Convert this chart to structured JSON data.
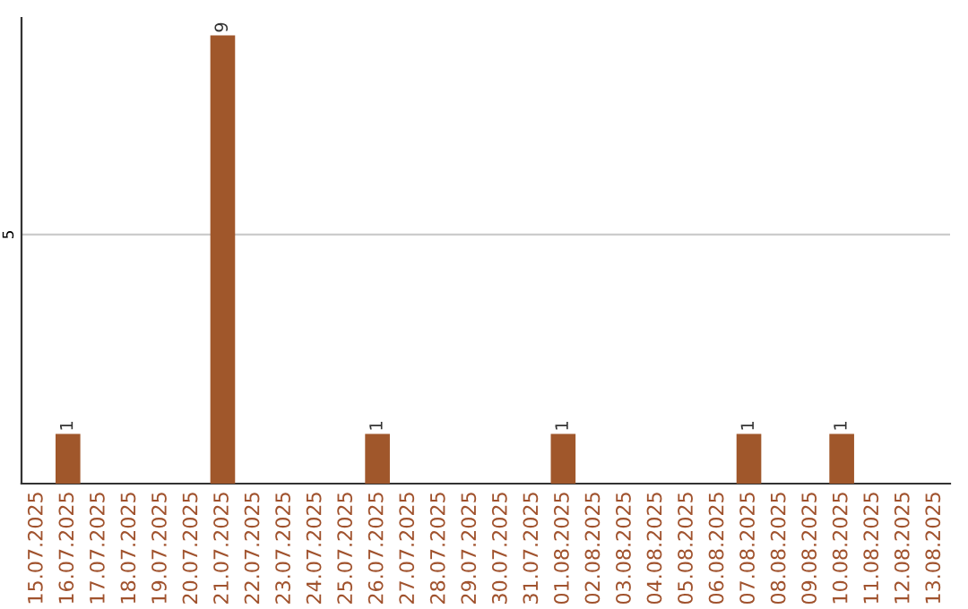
{
  "chart_data": {
    "type": "bar",
    "categories": [
      "15.07.2025",
      "16.07.2025",
      "17.07.2025",
      "18.07.2025",
      "19.07.2025",
      "20.07.2025",
      "21.07.2025",
      "22.07.2025",
      "23.07.2025",
      "24.07.2025",
      "25.07.2025",
      "26.07.2025",
      "27.07.2025",
      "28.07.2025",
      "29.07.2025",
      "30.07.2025",
      "31.07.2025",
      "01.08.2025",
      "02.08.2025",
      "03.08.2025",
      "04.08.2025",
      "05.08.2025",
      "06.08.2025",
      "07.08.2025",
      "08.08.2025",
      "09.08.2025",
      "10.08.2025",
      "11.08.2025",
      "12.08.2025",
      "13.08.2025"
    ],
    "values": [
      0,
      1,
      0,
      0,
      0,
      0,
      9,
      0,
      0,
      0,
      0,
      1,
      0,
      0,
      0,
      0,
      0,
      1,
      0,
      0,
      0,
      0,
      0,
      1,
      0,
      0,
      1,
      0,
      0,
      0
    ],
    "value_labels": [
      null,
      "1",
      null,
      null,
      null,
      null,
      "9",
      null,
      null,
      null,
      null,
      "1",
      null,
      null,
      null,
      null,
      null,
      "1",
      null,
      null,
      null,
      null,
      null,
      "1",
      null,
      null,
      "1",
      null,
      null,
      null
    ],
    "color": "#a0572b",
    "ylim": [
      0,
      9.35
    ],
    "yticks": [
      5
    ],
    "grid": "y"
  }
}
